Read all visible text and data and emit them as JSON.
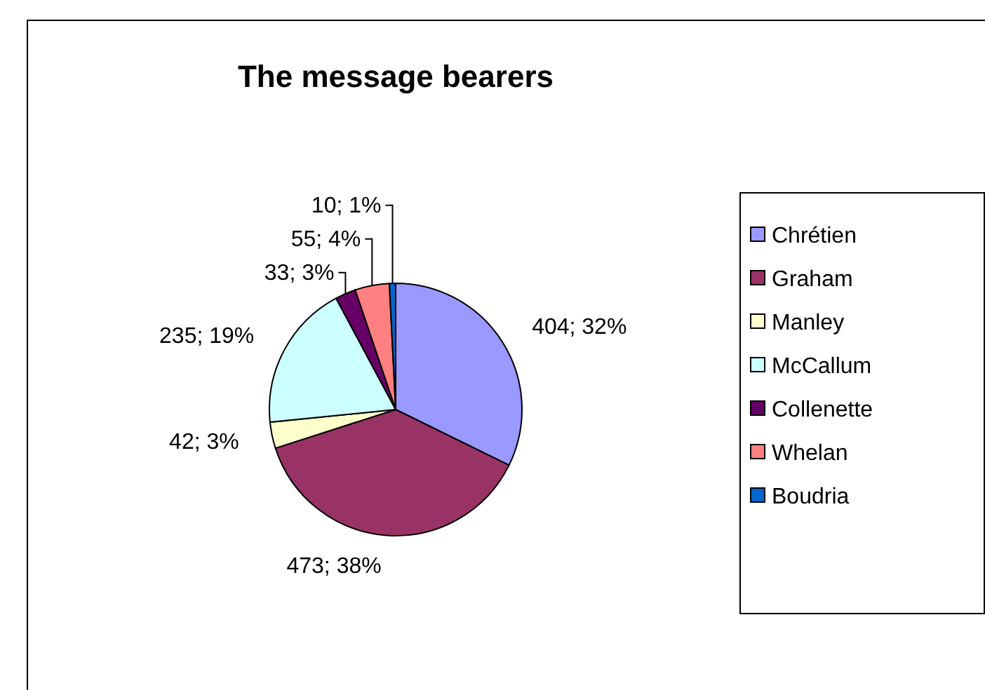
{
  "chart_data": {
    "type": "pie",
    "title": "The message bearers",
    "categories": [
      "Chrétien",
      "Graham",
      "Manley",
      "McCallum",
      "Collenette",
      "Whelan",
      "Boudria"
    ],
    "values": [
      404,
      473,
      42,
      235,
      33,
      55,
      10
    ],
    "colors": [
      "#9999ff",
      "#993366",
      "#ffffcc",
      "#ccffff",
      "#660066",
      "#ff8080",
      "#0066cc"
    ],
    "value_labels": [
      "404; 32%",
      "473; 38%",
      "42; 3%",
      "235; 19%",
      "33; 3%",
      "55; 4%",
      "10; 1%"
    ],
    "legend": "right"
  }
}
